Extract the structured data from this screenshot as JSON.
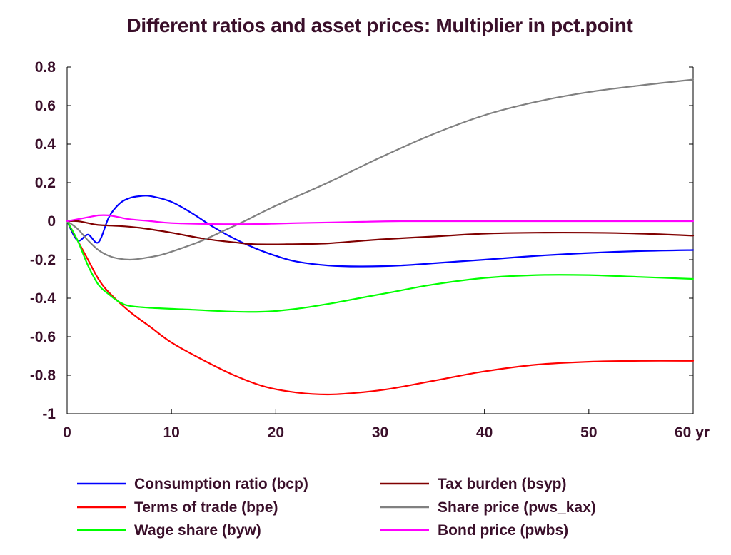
{
  "chart_data": {
    "type": "line",
    "title": "Different ratios and asset prices: Multiplier in pct.point",
    "xlabel": "",
    "ylabel": "",
    "xlim": [
      0,
      60
    ],
    "ylim": [
      -1,
      0.8
    ],
    "x_ticks": [
      0,
      10,
      20,
      30,
      40,
      50,
      60
    ],
    "x_tick_labels": [
      "0",
      "10",
      "20",
      "30",
      "40",
      "50",
      "60 yr"
    ],
    "y_ticks": [
      0.8,
      0.6,
      0.4,
      0.2,
      0,
      -0.2,
      -0.4,
      -0.6,
      -0.8,
      -1
    ],
    "y_tick_labels": [
      "0.8",
      "0.6",
      "0.4",
      "0.2",
      "0",
      "-0.2",
      "-0.4",
      "-0.6",
      "-0.8",
      "-1"
    ],
    "grid": false,
    "legend_position": "bottom",
    "series": [
      {
        "name": "Consumption ratio (bcp)",
        "color": "#0000ff",
        "points": [
          [
            0,
            0
          ],
          [
            1,
            -0.1
          ],
          [
            2,
            -0.07
          ],
          [
            3,
            -0.11
          ],
          [
            4,
            0.02
          ],
          [
            5,
            0.09
          ],
          [
            6,
            0.12
          ],
          [
            7,
            0.13
          ],
          [
            8,
            0.13
          ],
          [
            10,
            0.1
          ],
          [
            12,
            0.04
          ],
          [
            14,
            -0.03
          ],
          [
            16,
            -0.09
          ],
          [
            18,
            -0.14
          ],
          [
            20,
            -0.18
          ],
          [
            22,
            -0.21
          ],
          [
            25,
            -0.23
          ],
          [
            28,
            -0.235
          ],
          [
            32,
            -0.23
          ],
          [
            36,
            -0.215
          ],
          [
            40,
            -0.2
          ],
          [
            45,
            -0.18
          ],
          [
            50,
            -0.165
          ],
          [
            55,
            -0.155
          ],
          [
            60,
            -0.15
          ]
        ]
      },
      {
        "name": "Terms of trade (bpe)",
        "color": "#ff0000",
        "points": [
          [
            0,
            0
          ],
          [
            1,
            -0.1
          ],
          [
            2,
            -0.2
          ],
          [
            3,
            -0.3
          ],
          [
            4,
            -0.37
          ],
          [
            6,
            -0.47
          ],
          [
            8,
            -0.55
          ],
          [
            10,
            -0.63
          ],
          [
            13,
            -0.72
          ],
          [
            16,
            -0.8
          ],
          [
            19,
            -0.86
          ],
          [
            22,
            -0.89
          ],
          [
            25,
            -0.9
          ],
          [
            28,
            -0.89
          ],
          [
            31,
            -0.87
          ],
          [
            35,
            -0.83
          ],
          [
            40,
            -0.78
          ],
          [
            45,
            -0.745
          ],
          [
            50,
            -0.73
          ],
          [
            55,
            -0.725
          ],
          [
            60,
            -0.725
          ]
        ]
      },
      {
        "name": "Wage share (byw)",
        "color": "#00ff00",
        "points": [
          [
            0,
            0
          ],
          [
            1,
            -0.1
          ],
          [
            2,
            -0.23
          ],
          [
            3,
            -0.33
          ],
          [
            4,
            -0.38
          ],
          [
            5,
            -0.42
          ],
          [
            6,
            -0.44
          ],
          [
            8,
            -0.45
          ],
          [
            12,
            -0.46
          ],
          [
            16,
            -0.47
          ],
          [
            19,
            -0.47
          ],
          [
            22,
            -0.455
          ],
          [
            25,
            -0.43
          ],
          [
            28,
            -0.4
          ],
          [
            31,
            -0.37
          ],
          [
            35,
            -0.33
          ],
          [
            40,
            -0.295
          ],
          [
            45,
            -0.28
          ],
          [
            50,
            -0.28
          ],
          [
            55,
            -0.29
          ],
          [
            60,
            -0.3
          ]
        ]
      },
      {
        "name": "Tax burden (bsyp)",
        "color": "#800000",
        "points": [
          [
            0,
            0
          ],
          [
            1,
            0
          ],
          [
            2,
            -0.01
          ],
          [
            3,
            -0.02
          ],
          [
            5,
            -0.025
          ],
          [
            7,
            -0.035
          ],
          [
            10,
            -0.06
          ],
          [
            13,
            -0.09
          ],
          [
            16,
            -0.11
          ],
          [
            18,
            -0.12
          ],
          [
            21,
            -0.12
          ],
          [
            25,
            -0.115
          ],
          [
            30,
            -0.095
          ],
          [
            35,
            -0.08
          ],
          [
            40,
            -0.065
          ],
          [
            45,
            -0.06
          ],
          [
            50,
            -0.06
          ],
          [
            55,
            -0.065
          ],
          [
            60,
            -0.075
          ]
        ]
      },
      {
        "name": "Share price (pws_kax)",
        "color": "#808080",
        "points": [
          [
            0,
            0
          ],
          [
            1,
            -0.04
          ],
          [
            2,
            -0.1
          ],
          [
            3,
            -0.15
          ],
          [
            4,
            -0.18
          ],
          [
            5,
            -0.195
          ],
          [
            6,
            -0.2
          ],
          [
            7,
            -0.195
          ],
          [
            9,
            -0.175
          ],
          [
            11,
            -0.14
          ],
          [
            13,
            -0.1
          ],
          [
            15,
            -0.05
          ],
          [
            17,
            0
          ],
          [
            20,
            0.08
          ],
          [
            25,
            0.2
          ],
          [
            30,
            0.33
          ],
          [
            35,
            0.45
          ],
          [
            40,
            0.55
          ],
          [
            45,
            0.62
          ],
          [
            50,
            0.67
          ],
          [
            55,
            0.705
          ],
          [
            60,
            0.735
          ]
        ]
      },
      {
        "name": "Bond price (pwbs)",
        "color": "#ff00ff",
        "points": [
          [
            0,
            0
          ],
          [
            1,
            0.01
          ],
          [
            2,
            0.02
          ],
          [
            3,
            0.03
          ],
          [
            4,
            0.03
          ],
          [
            5,
            0.02
          ],
          [
            6,
            0.01
          ],
          [
            8,
            0
          ],
          [
            10,
            -0.01
          ],
          [
            14,
            -0.015
          ],
          [
            18,
            -0.015
          ],
          [
            22,
            -0.01
          ],
          [
            27,
            -0.005
          ],
          [
            32,
            0
          ],
          [
            40,
            0
          ],
          [
            50,
            0
          ],
          [
            60,
            0
          ]
        ]
      }
    ]
  }
}
